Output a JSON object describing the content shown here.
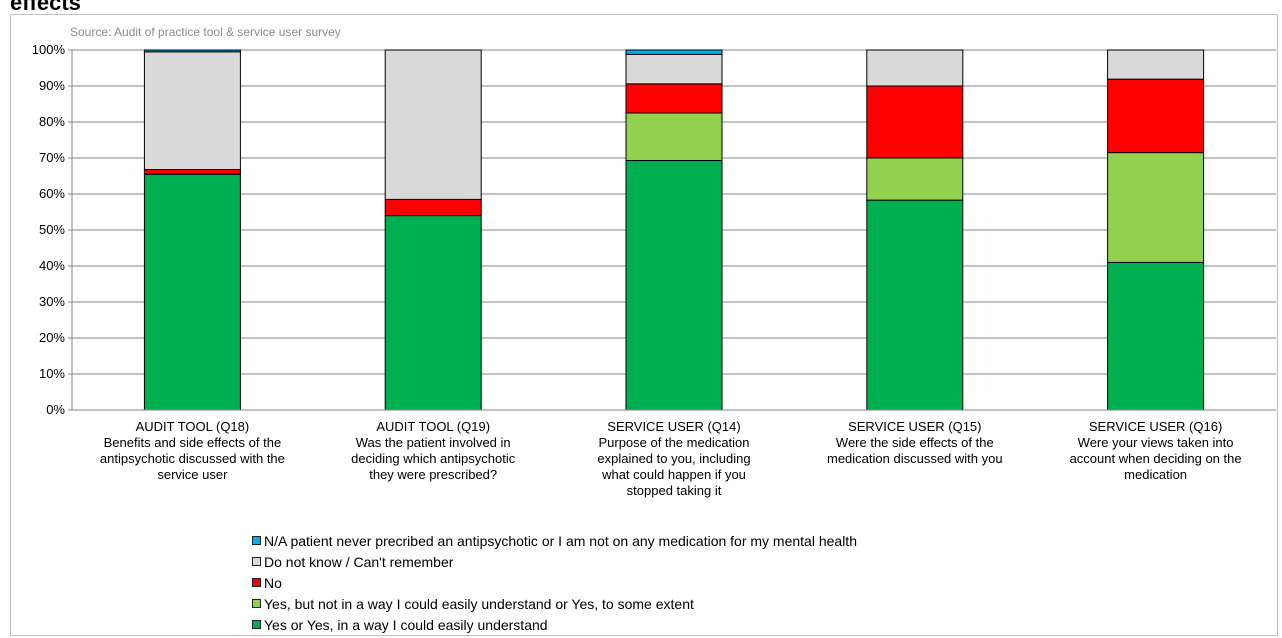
{
  "title": "effects",
  "source": "Source: Audit of practice tool & service user survey",
  "chart_data": {
    "type": "bar",
    "stacked": true,
    "ylim": [
      0,
      100
    ],
    "ytick_step": 10,
    "grid": true,
    "legend_position": "bottom",
    "categories": [
      [
        "AUDIT TOOL (Q18)",
        "Benefits and side effects of the",
        "antipsychotic discussed with the",
        "service user"
      ],
      [
        "AUDIT TOOL (Q19)",
        "Was the patient involved in",
        "deciding which antipsychotic",
        "they were prescribed?"
      ],
      [
        "SERVICE USER (Q14)",
        "Purpose of the medication",
        "explained to you, including",
        "what could happen if you",
        "stopped taking it"
      ],
      [
        "SERVICE USER (Q15)",
        "Were the side effects of the",
        "medication discussed with you"
      ],
      [
        "SERVICE USER (Q16)",
        "Were your views taken into",
        "account when deciding on the",
        "medication"
      ]
    ],
    "series": [
      {
        "name": "Yes or Yes, in a way I could easily understand",
        "color": "#00b050",
        "values": [
          65.5,
          54,
          69.3,
          58.3,
          41
        ]
      },
      {
        "name": "Yes, but not in a way I could easily understand or Yes, to some extent",
        "color": "#92d050",
        "values": [
          0,
          0,
          13.2,
          11.7,
          30.5
        ]
      },
      {
        "name": "No",
        "color": "#ff0000",
        "values": [
          1.3,
          4.5,
          8.1,
          20,
          20.4
        ]
      },
      {
        "name": "Do not know / Can't remember",
        "color": "#d9d9d9",
        "values": [
          32.7,
          41.5,
          8.2,
          10,
          8.1
        ]
      },
      {
        "name": "N/A patient never precribed an antipsychotic or I am not on any medication for my mental health",
        "color": "#00b0f0",
        "values": [
          0.5,
          0,
          1.2,
          0,
          0
        ]
      }
    ],
    "yticks": [
      "0%",
      "10%",
      "20%",
      "30%",
      "40%",
      "50%",
      "60%",
      "70%",
      "80%",
      "90%",
      "100%"
    ]
  },
  "legend_order": [
    4,
    3,
    2,
    1,
    0
  ]
}
